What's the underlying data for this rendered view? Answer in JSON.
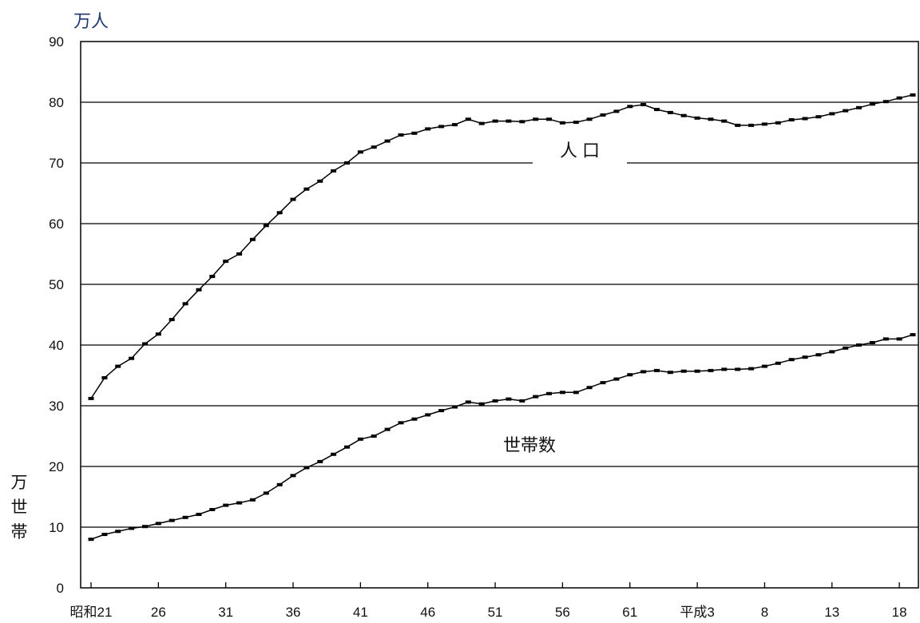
{
  "chart_data": {
    "type": "line",
    "y_unit_top": "万人",
    "y_unit_left": "万世帯",
    "ylim": [
      0,
      90
    ],
    "y_ticks": [
      0,
      10,
      20,
      30,
      40,
      50,
      60,
      70,
      80,
      90
    ],
    "x_start_year": 1946,
    "x_ticks": [
      {
        "year": 1946,
        "label": "昭和21"
      },
      {
        "year": 1951,
        "label": "26"
      },
      {
        "year": 1956,
        "label": "31"
      },
      {
        "year": 1961,
        "label": "36"
      },
      {
        "year": 1966,
        "label": "41"
      },
      {
        "year": 1971,
        "label": "46"
      },
      {
        "year": 1976,
        "label": "51"
      },
      {
        "year": 1981,
        "label": "56"
      },
      {
        "year": 1986,
        "label": "61"
      },
      {
        "year": 1991,
        "label": "平成3"
      },
      {
        "year": 1996,
        "label": "8"
      },
      {
        "year": 2001,
        "label": "13"
      },
      {
        "year": 2006,
        "label": "18"
      }
    ],
    "grid": true,
    "series": [
      {
        "name": "人 口",
        "color": "#000000",
        "values": [
          31.2,
          34.6,
          36.5,
          37.8,
          40.2,
          41.8,
          44.2,
          46.8,
          49.1,
          51.3,
          53.8,
          55.0,
          57.4,
          59.7,
          61.8,
          64.0,
          65.7,
          67.0,
          68.7,
          70.0,
          71.8,
          72.6,
          73.6,
          74.6,
          74.9,
          75.6,
          76.0,
          76.3,
          77.2,
          76.5,
          76.9,
          76.9,
          76.8,
          77.2,
          77.2,
          76.6,
          76.7,
          77.2,
          77.9,
          78.5,
          79.3,
          79.6,
          78.8,
          78.3,
          77.8,
          77.4,
          77.2,
          76.9,
          76.2,
          76.2,
          76.4,
          76.6,
          77.1,
          77.3,
          77.6,
          78.1,
          78.6,
          79.1,
          79.7,
          80.1,
          80.7,
          81.2
        ]
      },
      {
        "name": "世帯数",
        "color": "#000000",
        "values": [
          8.0,
          8.8,
          9.3,
          9.8,
          10.1,
          10.6,
          11.1,
          11.6,
          12.1,
          12.9,
          13.6,
          14.0,
          14.5,
          15.6,
          17.0,
          18.5,
          19.8,
          20.8,
          22.0,
          23.2,
          24.5,
          25.0,
          26.1,
          27.2,
          27.8,
          28.5,
          29.2,
          29.8,
          30.6,
          30.3,
          30.8,
          31.1,
          30.8,
          31.5,
          32.0,
          32.2,
          32.2,
          33.0,
          33.8,
          34.4,
          35.1,
          35.6,
          35.8,
          35.5,
          35.7,
          35.7,
          35.8,
          36.0,
          36.0,
          36.1,
          36.5,
          37.0,
          37.6,
          38.0,
          38.4,
          38.9,
          39.5,
          40.0,
          40.4,
          41.0,
          41.0,
          41.7
        ]
      }
    ]
  }
}
